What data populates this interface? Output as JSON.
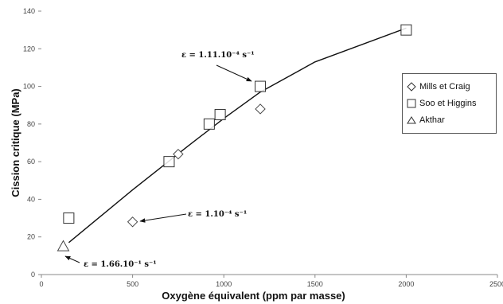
{
  "chart_data": {
    "type": "scatter",
    "xlabel": "Oxygène équivalent (ppm par masse)",
    "ylabel": "Cission critique (MPa)",
    "xlim": [
      0,
      2500
    ],
    "ylim": [
      0,
      140
    ],
    "x_ticks": [
      "0",
      "500",
      "1000",
      "1500",
      "2000",
      "2500"
    ],
    "y_ticks": [
      "0",
      "20",
      "40",
      "60",
      "80",
      "100",
      "120",
      "140"
    ],
    "grid": false,
    "legend_position": "right",
    "series": [
      {
        "name": "Mills et Craig",
        "marker": "diamond",
        "x": [
          500,
          750,
          1200
        ],
        "y": [
          28,
          64,
          88
        ]
      },
      {
        "name": "Soo et Higgins",
        "marker": "square",
        "x": [
          150,
          700,
          920,
          980,
          1200,
          2000
        ],
        "y": [
          30,
          60,
          80,
          85,
          100,
          130
        ]
      },
      {
        "name": "Akthar",
        "marker": "triangle",
        "x": [
          120
        ],
        "y": [
          15
        ]
      }
    ],
    "trend_line": {
      "x": [
        150,
        500,
        800,
        1000,
        1200,
        1500,
        2000
      ],
      "y": [
        17,
        45,
        68,
        83,
        97,
        113,
        131
      ]
    },
    "annotations": [
      {
        "text": "ε = 1.11.10⁻⁴ s⁻¹",
        "x": 1230,
        "y": 100
      },
      {
        "text": "ε = 1.10⁻⁴ s⁻¹",
        "x": 540,
        "y": 29
      },
      {
        "text": "ε = 1.66.10⁻¹ s⁻¹",
        "x": 130,
        "y": 14
      }
    ]
  }
}
